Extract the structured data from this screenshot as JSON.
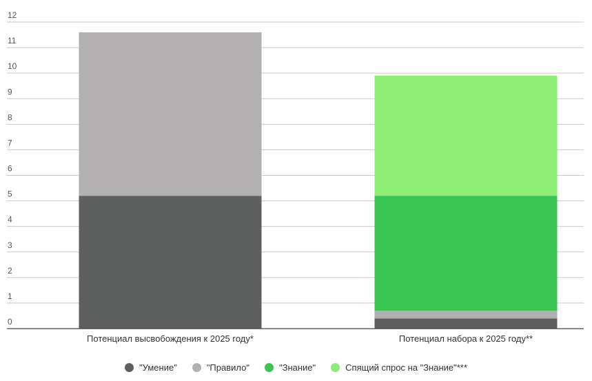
{
  "chart_data": {
    "type": "bar",
    "stacked": true,
    "categories": [
      "Потенциал высвобождения к 2025 году*",
      "Потенциал набора к 2025 году**"
    ],
    "series": [
      {
        "name": "\"Умение\"",
        "color": "#5e605f",
        "values": [
          5.2,
          0.4
        ]
      },
      {
        "name": "\"Правило\"",
        "color": "#b2b0b0",
        "values": [
          6.4,
          0.3
        ]
      },
      {
        "name": "\"Знание\"",
        "color": "#3cc455",
        "values": [
          0,
          4.5
        ]
      },
      {
        "name": "Спящий спрос на \"Знание\"***",
        "color": "#8ded75",
        "values": [
          0,
          4.7
        ]
      }
    ],
    "ylim": [
      0,
      12
    ],
    "yticks": [
      "0",
      "1",
      "2",
      "3",
      "4",
      "5",
      "6",
      "7",
      "8",
      "9",
      "10",
      "11",
      "12"
    ],
    "grid": true,
    "legend_position": "bottom"
  }
}
